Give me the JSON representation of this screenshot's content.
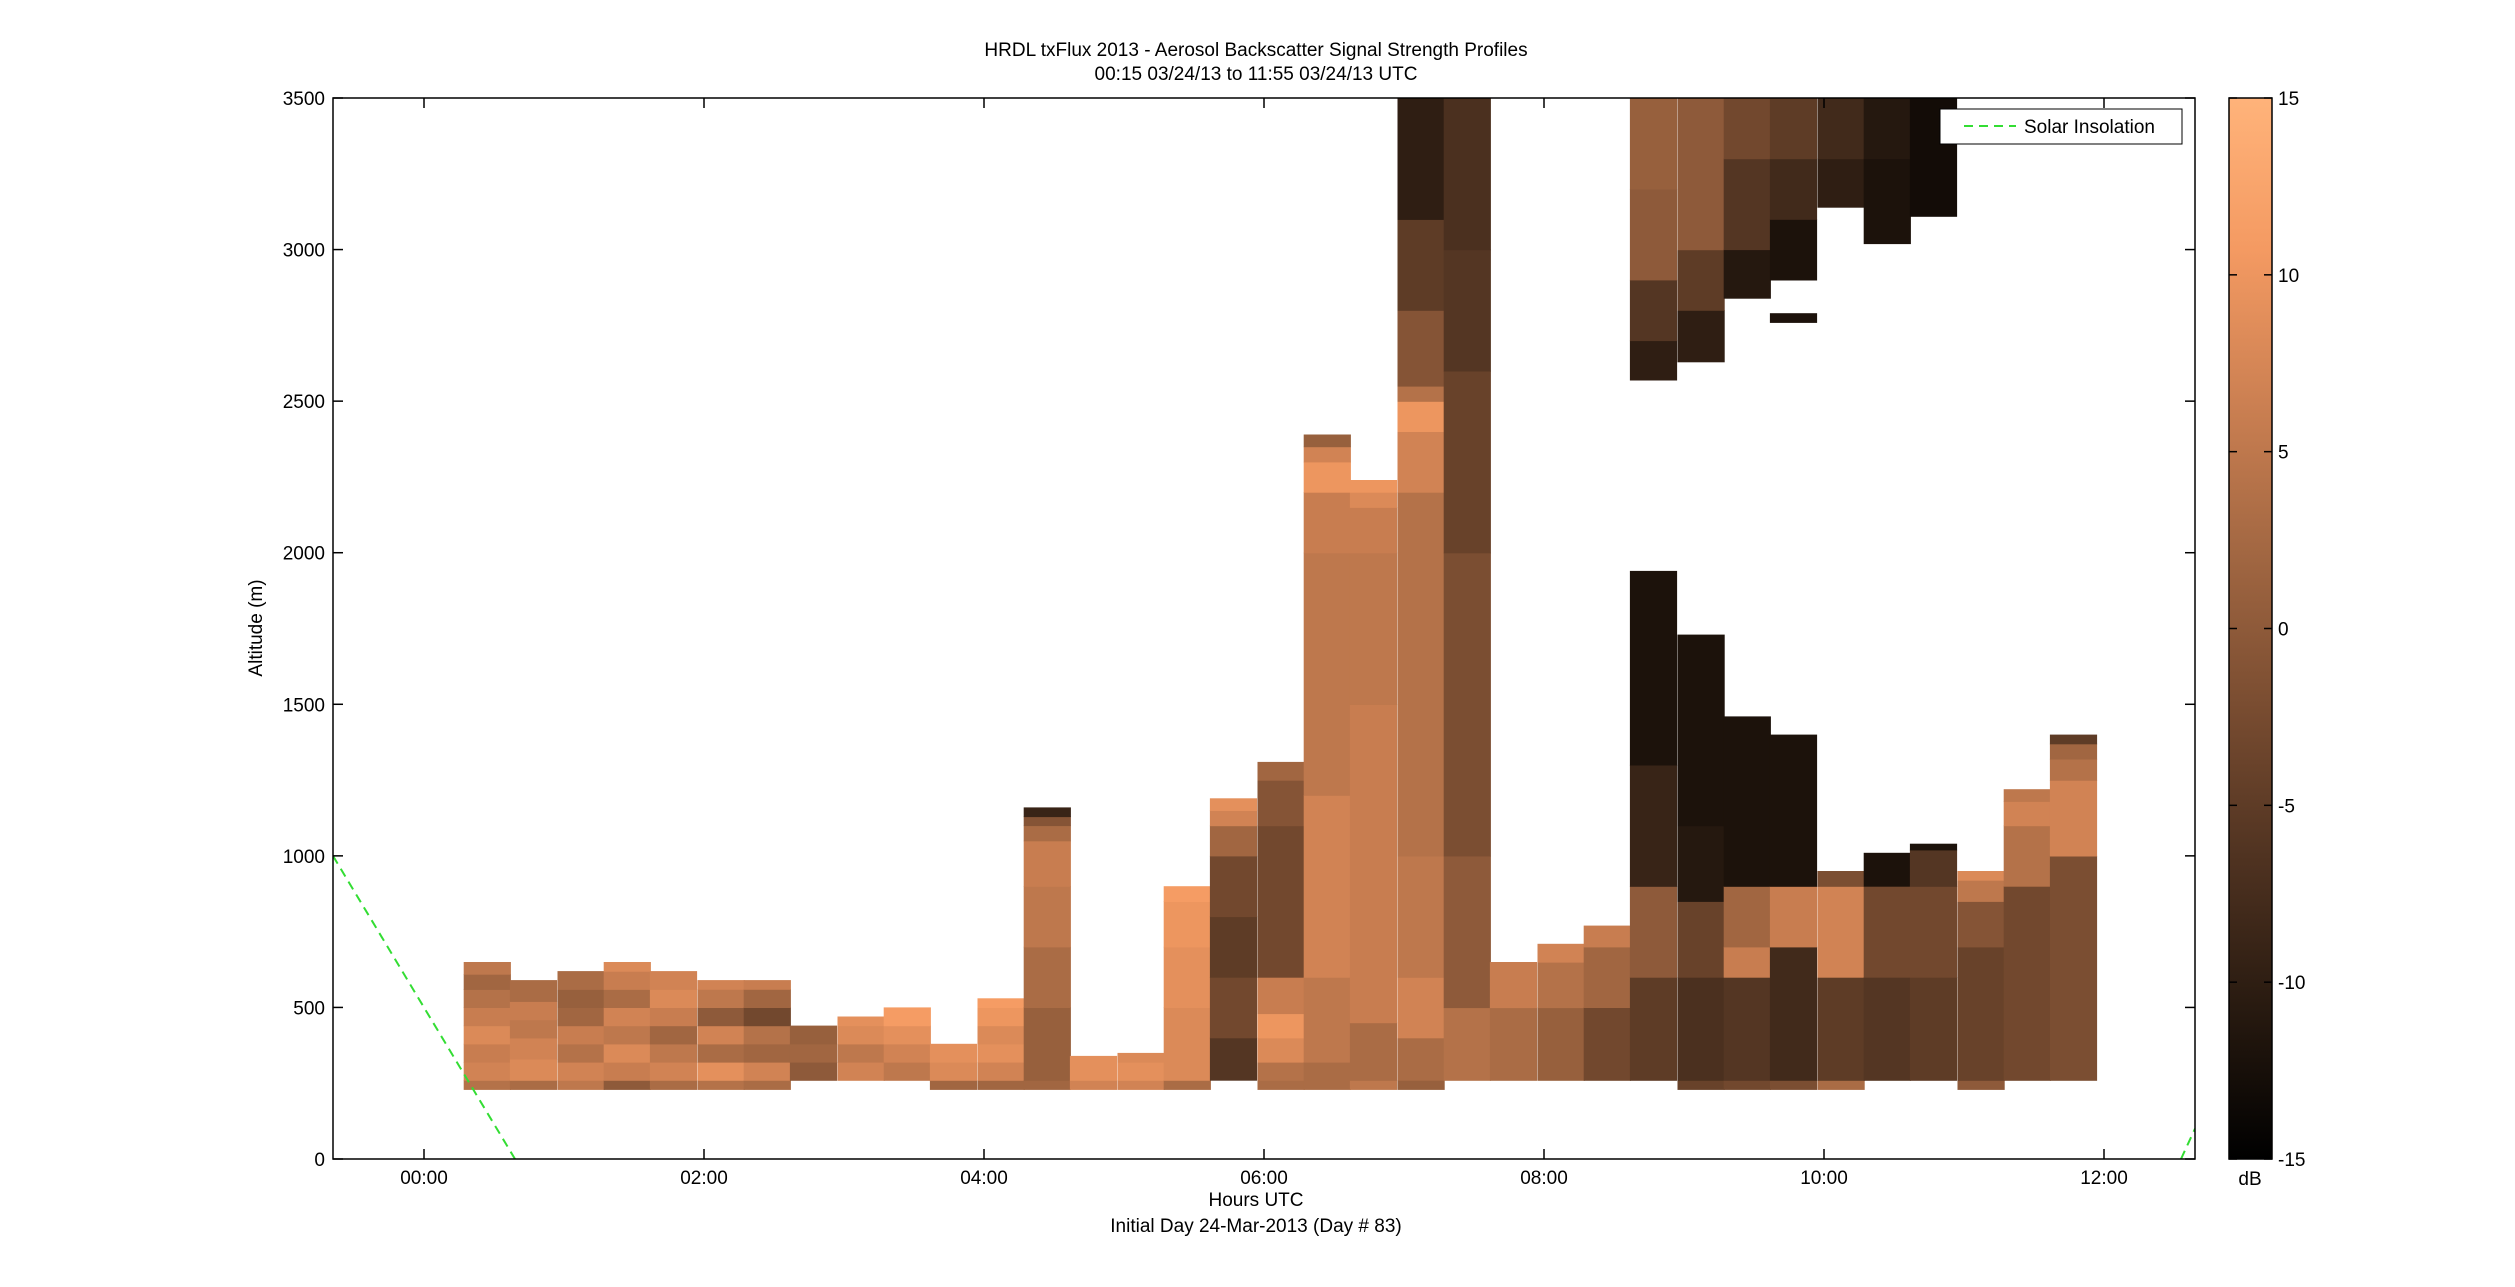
{
  "chart_data": {
    "type": "heatmap",
    "title": "HRDL txFlux 2013 - Aerosol Backscatter Signal Strength Profiles",
    "subtitle": "00:15 03/24/13 to 11:55 03/24/13  UTC",
    "xlabel": "Hours UTC",
    "xlabel2": "Initial Day 24-Mar-2013 (Day # 83)",
    "ylabel": "Altitude (m)",
    "xlim": [
      -0.65,
      12.65
    ],
    "ylim": [
      0,
      3500
    ],
    "xticks": [
      0,
      2,
      4,
      6,
      8,
      10,
      12
    ],
    "xtick_labels": [
      "00:00",
      "02:00",
      "04:00",
      "06:00",
      "08:00",
      "10:00",
      "12:00"
    ],
    "yticks": [
      0,
      500,
      1000,
      1500,
      2000,
      2500,
      3000,
      3500
    ],
    "ytick_labels": [
      "0",
      "500",
      "1000",
      "1500",
      "2000",
      "2500",
      "3000",
      "3500"
    ],
    "colorbar": {
      "label": "dB",
      "range": [
        -15,
        15
      ],
      "ticks": [
        -15,
        -10,
        -5,
        0,
        5,
        10,
        15
      ],
      "tick_labels": [
        "-15",
        "-10",
        "-5",
        "0",
        "5",
        "10",
        "15"
      ],
      "colormap": "copper",
      "stops": [
        "#000000",
        "#281a10",
        "#503321",
        "#7a4d31",
        "#a26742",
        "#cc8052",
        "#f49a62",
        "#ffb37a"
      ]
    },
    "legend": {
      "entries": [
        "Solar Insolation"
      ],
      "placement": "top-right",
      "line_color": "#33dd33",
      "line_style": "dashed"
    },
    "solar_insolation": [
      {
        "x": -0.65,
        "y": 1000
      },
      {
        "x": 0.65,
        "y": 0
      }
    ],
    "solar_insolation_2": [
      {
        "x": 12.55,
        "y": 0
      },
      {
        "x": 12.65,
        "y": 100
      }
    ],
    "bin_width_hours": 0.333,
    "profiles": [
      {
        "time": 0.45,
        "segments": [
          [
            230,
            260,
            4
          ],
          [
            260,
            320,
            7
          ],
          [
            320,
            380,
            6
          ],
          [
            380,
            440,
            8
          ],
          [
            440,
            500,
            6
          ],
          [
            500,
            560,
            4
          ],
          [
            560,
            610,
            2
          ],
          [
            610,
            650,
            5
          ]
        ]
      },
      {
        "time": 0.78,
        "segments": [
          [
            230,
            260,
            3
          ],
          [
            260,
            330,
            8
          ],
          [
            330,
            400,
            7
          ],
          [
            400,
            460,
            5
          ],
          [
            460,
            520,
            6
          ],
          [
            520,
            590,
            3
          ]
        ]
      },
      {
        "time": 1.12,
        "segments": [
          [
            230,
            260,
            5
          ],
          [
            260,
            320,
            7
          ],
          [
            320,
            380,
            4
          ],
          [
            380,
            440,
            6
          ],
          [
            440,
            500,
            2
          ],
          [
            500,
            560,
            1
          ],
          [
            560,
            620,
            3
          ]
        ]
      },
      {
        "time": 1.45,
        "segments": [
          [
            230,
            260,
            0
          ],
          [
            260,
            320,
            6
          ],
          [
            320,
            380,
            8
          ],
          [
            380,
            440,
            5
          ],
          [
            440,
            500,
            7
          ],
          [
            500,
            560,
            3
          ],
          [
            560,
            620,
            6
          ],
          [
            620,
            650,
            8
          ]
        ]
      },
      {
        "time": 1.78,
        "segments": [
          [
            230,
            260,
            3
          ],
          [
            260,
            320,
            7
          ],
          [
            320,
            380,
            5
          ],
          [
            380,
            440,
            2
          ],
          [
            440,
            500,
            6
          ],
          [
            500,
            560,
            8
          ],
          [
            560,
            620,
            7
          ]
        ]
      },
      {
        "time": 2.12,
        "segments": [
          [
            230,
            260,
            4
          ],
          [
            260,
            320,
            9
          ],
          [
            320,
            380,
            3
          ],
          [
            380,
            440,
            7
          ],
          [
            440,
            500,
            0
          ],
          [
            500,
            560,
            5
          ],
          [
            560,
            590,
            7
          ]
        ]
      },
      {
        "time": 2.45,
        "segments": [
          [
            230,
            260,
            3
          ],
          [
            260,
            320,
            7
          ],
          [
            320,
            380,
            2
          ],
          [
            380,
            440,
            4
          ],
          [
            440,
            500,
            -3
          ],
          [
            500,
            560,
            2
          ],
          [
            560,
            590,
            6
          ]
        ]
      },
      {
        "time": 2.78,
        "segments": [
          [
            260,
            320,
            0
          ],
          [
            320,
            380,
            2
          ],
          [
            380,
            440,
            1
          ]
        ]
      },
      {
        "time": 3.12,
        "segments": [
          [
            260,
            320,
            7
          ],
          [
            320,
            380,
            5
          ],
          [
            380,
            440,
            8
          ],
          [
            440,
            470,
            9
          ]
        ]
      },
      {
        "time": 3.45,
        "segments": [
          [
            260,
            320,
            5
          ],
          [
            320,
            380,
            7
          ],
          [
            380,
            440,
            9
          ],
          [
            440,
            500,
            11
          ]
        ]
      },
      {
        "time": 3.78,
        "segments": [
          [
            230,
            260,
            2
          ],
          [
            260,
            320,
            8
          ],
          [
            320,
            380,
            9
          ]
        ]
      },
      {
        "time": 4.12,
        "segments": [
          [
            230,
            260,
            2
          ],
          [
            260,
            320,
            7
          ],
          [
            320,
            380,
            9
          ],
          [
            380,
            440,
            8
          ],
          [
            440,
            500,
            10
          ],
          [
            500,
            530,
            11
          ]
        ]
      },
      {
        "time": 4.45,
        "segments": [
          [
            230,
            260,
            2
          ],
          [
            260,
            500,
            1
          ],
          [
            500,
            700,
            3
          ],
          [
            700,
            900,
            5
          ],
          [
            900,
            1050,
            6
          ],
          [
            1050,
            1100,
            3
          ],
          [
            1100,
            1130,
            -1
          ],
          [
            1130,
            1160,
            -9
          ]
        ]
      },
      {
        "time": 4.78,
        "segments": [
          [
            230,
            260,
            7
          ],
          [
            260,
            340,
            9
          ]
        ]
      },
      {
        "time": 5.12,
        "segments": [
          [
            230,
            260,
            7
          ],
          [
            260,
            320,
            9
          ],
          [
            320,
            350,
            8
          ]
        ]
      },
      {
        "time": 5.45,
        "segments": [
          [
            230,
            260,
            3
          ],
          [
            260,
            500,
            8
          ],
          [
            500,
            700,
            9
          ],
          [
            700,
            850,
            10
          ],
          [
            850,
            900,
            11
          ]
        ]
      },
      {
        "time": 5.78,
        "segments": [
          [
            260,
            400,
            -6
          ],
          [
            400,
            600,
            -3
          ],
          [
            600,
            800,
            -5
          ],
          [
            800,
            1000,
            -3
          ],
          [
            1000,
            1100,
            2
          ],
          [
            1100,
            1150,
            7
          ],
          [
            1150,
            1190,
            9
          ]
        ]
      },
      {
        "time": 6.12,
        "segments": [
          [
            230,
            260,
            3
          ],
          [
            260,
            320,
            4
          ],
          [
            320,
            400,
            8
          ],
          [
            400,
            480,
            10
          ],
          [
            480,
            600,
            6
          ],
          [
            600,
            1100,
            -3
          ],
          [
            1100,
            1250,
            -1
          ],
          [
            1250,
            1310,
            2
          ]
        ]
      },
      {
        "time": 6.45,
        "segments": [
          [
            230,
            320,
            3
          ],
          [
            320,
            600,
            5
          ],
          [
            600,
            1200,
            7
          ],
          [
            1200,
            2000,
            5
          ],
          [
            2000,
            2200,
            6
          ],
          [
            2200,
            2300,
            10
          ],
          [
            2300,
            2350,
            7
          ],
          [
            2350,
            2390,
            1
          ]
        ]
      },
      {
        "time": 6.78,
        "segments": [
          [
            230,
            260,
            5
          ],
          [
            260,
            450,
            3
          ],
          [
            450,
            1500,
            6
          ],
          [
            1500,
            2000,
            5
          ],
          [
            2000,
            2150,
            6
          ],
          [
            2150,
            2200,
            8
          ],
          [
            2200,
            2240,
            10
          ]
        ]
      },
      {
        "time": 7.12,
        "segments": [
          [
            230,
            260,
            1
          ],
          [
            260,
            400,
            3
          ],
          [
            400,
            600,
            7
          ],
          [
            600,
            1000,
            5
          ],
          [
            1000,
            2200,
            4
          ],
          [
            2200,
            2400,
            7
          ],
          [
            2400,
            2500,
            10
          ],
          [
            2500,
            2550,
            4
          ],
          [
            2550,
            2800,
            -1
          ],
          [
            2800,
            3100,
            -5
          ],
          [
            3100,
            3500,
            -10
          ]
        ]
      },
      {
        "time": 7.45,
        "segments": [
          [
            260,
            500,
            4
          ],
          [
            500,
            1000,
            0
          ],
          [
            1000,
            2000,
            -2
          ],
          [
            2000,
            2600,
            -4
          ],
          [
            2600,
            3000,
            -6
          ],
          [
            3000,
            3500,
            -7
          ]
        ]
      },
      {
        "time": 7.78,
        "segments": [
          [
            260,
            500,
            3
          ],
          [
            500,
            650,
            6
          ]
        ]
      },
      {
        "time": 8.12,
        "segments": [
          [
            260,
            500,
            1
          ],
          [
            500,
            650,
            4
          ],
          [
            650,
            710,
            7
          ]
        ]
      },
      {
        "time": 8.45,
        "segments": [
          [
            260,
            500,
            -3
          ],
          [
            500,
            700,
            2
          ],
          [
            700,
            770,
            6
          ]
        ]
      },
      {
        "time": 8.78,
        "segments": [
          [
            260,
            600,
            -5
          ],
          [
            600,
            900,
            0
          ],
          [
            900,
            1300,
            -9
          ],
          [
            1300,
            1940,
            -12
          ],
          [
            2570,
            2700,
            -10
          ],
          [
            2700,
            2900,
            -6
          ],
          [
            2900,
            3200,
            0
          ],
          [
            3200,
            3500,
            1
          ]
        ]
      },
      {
        "time": 9.12,
        "segments": [
          [
            230,
            260,
            -4
          ],
          [
            260,
            600,
            -7
          ],
          [
            600,
            850,
            -4
          ],
          [
            850,
            1100,
            -11
          ],
          [
            1100,
            1730,
            -12
          ],
          [
            2630,
            2800,
            -10
          ],
          [
            2800,
            3000,
            -5
          ],
          [
            3000,
            3500,
            0
          ]
        ]
      },
      {
        "time": 9.45,
        "segments": [
          [
            230,
            260,
            -3
          ],
          [
            260,
            600,
            -6
          ],
          [
            600,
            700,
            6
          ],
          [
            700,
            900,
            2
          ],
          [
            900,
            1460,
            -12
          ],
          [
            2840,
            3000,
            -11
          ],
          [
            3000,
            3300,
            -6
          ],
          [
            3300,
            3500,
            -3
          ]
        ]
      },
      {
        "time": 9.78,
        "segments": [
          [
            230,
            260,
            -2
          ],
          [
            260,
            700,
            -8
          ],
          [
            700,
            900,
            6
          ],
          [
            900,
            1400,
            -12
          ],
          [
            2760,
            2790,
            -12
          ],
          [
            2900,
            3100,
            -12
          ],
          [
            3100,
            3300,
            -8
          ],
          [
            3300,
            3500,
            -5
          ]
        ]
      },
      {
        "time": 10.12,
        "segments": [
          [
            230,
            260,
            3
          ],
          [
            260,
            600,
            -5
          ],
          [
            600,
            900,
            7
          ],
          [
            900,
            950,
            -2
          ],
          [
            3140,
            3300,
            -10
          ],
          [
            3300,
            3500,
            -8
          ]
        ]
      },
      {
        "time": 10.45,
        "segments": [
          [
            260,
            600,
            -6
          ],
          [
            600,
            900,
            -3
          ],
          [
            900,
            1010,
            -12
          ],
          [
            3020,
            3300,
            -12
          ],
          [
            3300,
            3500,
            -11
          ]
        ]
      },
      {
        "time": 10.78,
        "segments": [
          [
            260,
            600,
            -5
          ],
          [
            600,
            900,
            -3
          ],
          [
            900,
            1020,
            -6
          ],
          [
            1020,
            1040,
            -12
          ],
          [
            3110,
            3500,
            -13
          ]
        ]
      },
      {
        "time": 11.12,
        "segments": [
          [
            230,
            260,
            0
          ],
          [
            260,
            700,
            -4
          ],
          [
            700,
            850,
            -1
          ],
          [
            850,
            920,
            5
          ],
          [
            920,
            950,
            8
          ]
        ]
      },
      {
        "time": 11.45,
        "segments": [
          [
            260,
            900,
            -3
          ],
          [
            900,
            1100,
            4
          ],
          [
            1100,
            1180,
            7
          ],
          [
            1180,
            1220,
            5
          ]
        ]
      },
      {
        "time": 11.78,
        "segments": [
          [
            260,
            1000,
            -2
          ],
          [
            1000,
            1250,
            7
          ],
          [
            1250,
            1320,
            4
          ],
          [
            1320,
            1370,
            2
          ],
          [
            1370,
            1400,
            -5
          ]
        ]
      }
    ]
  }
}
